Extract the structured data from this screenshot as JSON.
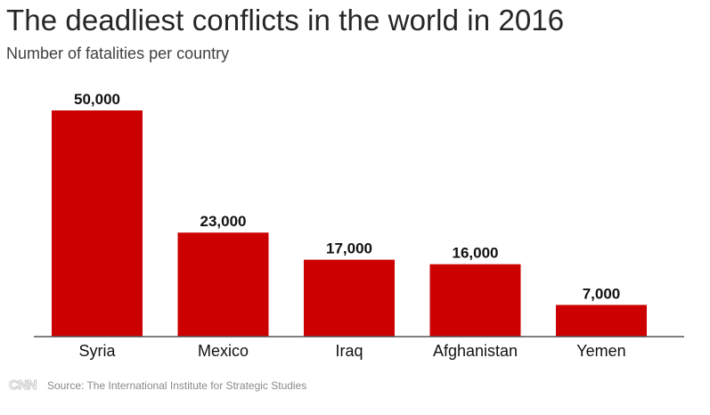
{
  "title": "The deadliest conflicts in the world in 2016",
  "subtitle": "Number of fatalities per country",
  "footer": {
    "logo": "CNN",
    "source": "Source: The International Institute for Strategic Studies"
  },
  "colors": {
    "bar": "#cc0000",
    "axis": "#555555",
    "text": "#111111"
  },
  "chart_data": {
    "type": "bar",
    "title": "The deadliest conflicts in the world in 2016",
    "subtitle": "Number of fatalities per country",
    "xlabel": "",
    "ylabel": "",
    "categories": [
      "Syria",
      "Mexico",
      "Iraq",
      "Afghanistan",
      "Yemen"
    ],
    "values": [
      50000,
      23000,
      17000,
      16000,
      7000
    ],
    "value_labels": [
      "50,000",
      "23,000",
      "17,000",
      "16,000",
      "7,000"
    ],
    "ylim": [
      0,
      50000
    ],
    "grid": false,
    "legend": "none"
  }
}
